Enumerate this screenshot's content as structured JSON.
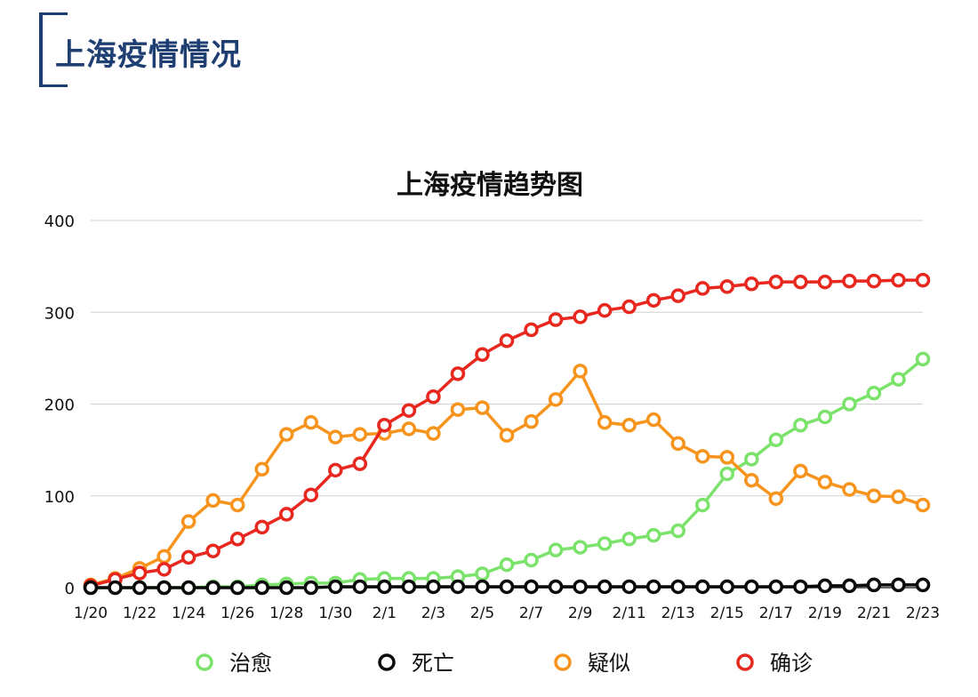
{
  "page": {
    "title": "上海疫情情况"
  },
  "chart_data": {
    "type": "line",
    "title": "上海疫情趋势图",
    "xlabel": "",
    "ylabel": "",
    "ylim": [
      0,
      400
    ],
    "yticks": [
      0,
      100,
      200,
      300,
      400
    ],
    "grid": true,
    "legend": "bottom",
    "categories": [
      "1/20",
      "1/21",
      "1/22",
      "1/23",
      "1/24",
      "1/25",
      "1/26",
      "1/27",
      "1/28",
      "1/29",
      "1/30",
      "1/31",
      "2/1",
      "2/2",
      "2/3",
      "2/4",
      "2/5",
      "2/6",
      "2/7",
      "2/8",
      "2/9",
      "2/10",
      "2/11",
      "2/12",
      "2/13",
      "2/14",
      "2/15",
      "2/16",
      "2/17",
      "2/18",
      "2/19",
      "2/20",
      "2/21",
      "2/22",
      "2/23"
    ],
    "xtick_labels": [
      "1/20",
      "1/22",
      "1/24",
      "1/26",
      "1/28",
      "1/30",
      "2/1",
      "2/3",
      "2/5",
      "2/7",
      "2/9",
      "2/11",
      "2/13",
      "2/15",
      "2/17",
      "2/19",
      "2/21",
      "2/23"
    ],
    "series": [
      {
        "name": "确诊",
        "color": "#e8281f",
        "values": [
          2,
          9,
          16,
          20,
          33,
          40,
          53,
          66,
          80,
          101,
          128,
          135,
          177,
          193,
          208,
          233,
          254,
          269,
          281,
          292,
          295,
          302,
          306,
          313,
          318,
          326,
          328,
          331,
          333,
          333,
          333,
          334,
          334,
          335,
          335
        ]
      },
      {
        "name": "疑似",
        "color": "#f7941d",
        "values": [
          3,
          10,
          21,
          34,
          72,
          95,
          90,
          129,
          167,
          180,
          164,
          167,
          168,
          173,
          168,
          194,
          196,
          166,
          181,
          205,
          236,
          180,
          177,
          183,
          157,
          143,
          142,
          117,
          97,
          127,
          115,
          107,
          100,
          99,
          90
        ]
      },
      {
        "name": "治愈",
        "color": "#7be36b",
        "values": [
          0,
          0,
          0,
          0,
          0,
          1,
          1,
          3,
          4,
          5,
          5,
          9,
          10,
          10,
          10,
          12,
          15,
          25,
          30,
          41,
          44,
          48,
          53,
          57,
          62,
          90,
          124,
          140,
          161,
          177,
          186,
          200,
          212,
          227,
          249
        ]
      },
      {
        "name": "死亡",
        "color": "#0a0a0a",
        "values": [
          0,
          0,
          0,
          0,
          0,
          0,
          0,
          0,
          0,
          0,
          1,
          1,
          1,
          1,
          1,
          1,
          1,
          1,
          1,
          1,
          1,
          1,
          1,
          1,
          1,
          1,
          1,
          1,
          1,
          1,
          2,
          2,
          3,
          3,
          3
        ]
      }
    ],
    "legend_order": [
      "治愈",
      "死亡",
      "疑似",
      "确诊"
    ]
  }
}
